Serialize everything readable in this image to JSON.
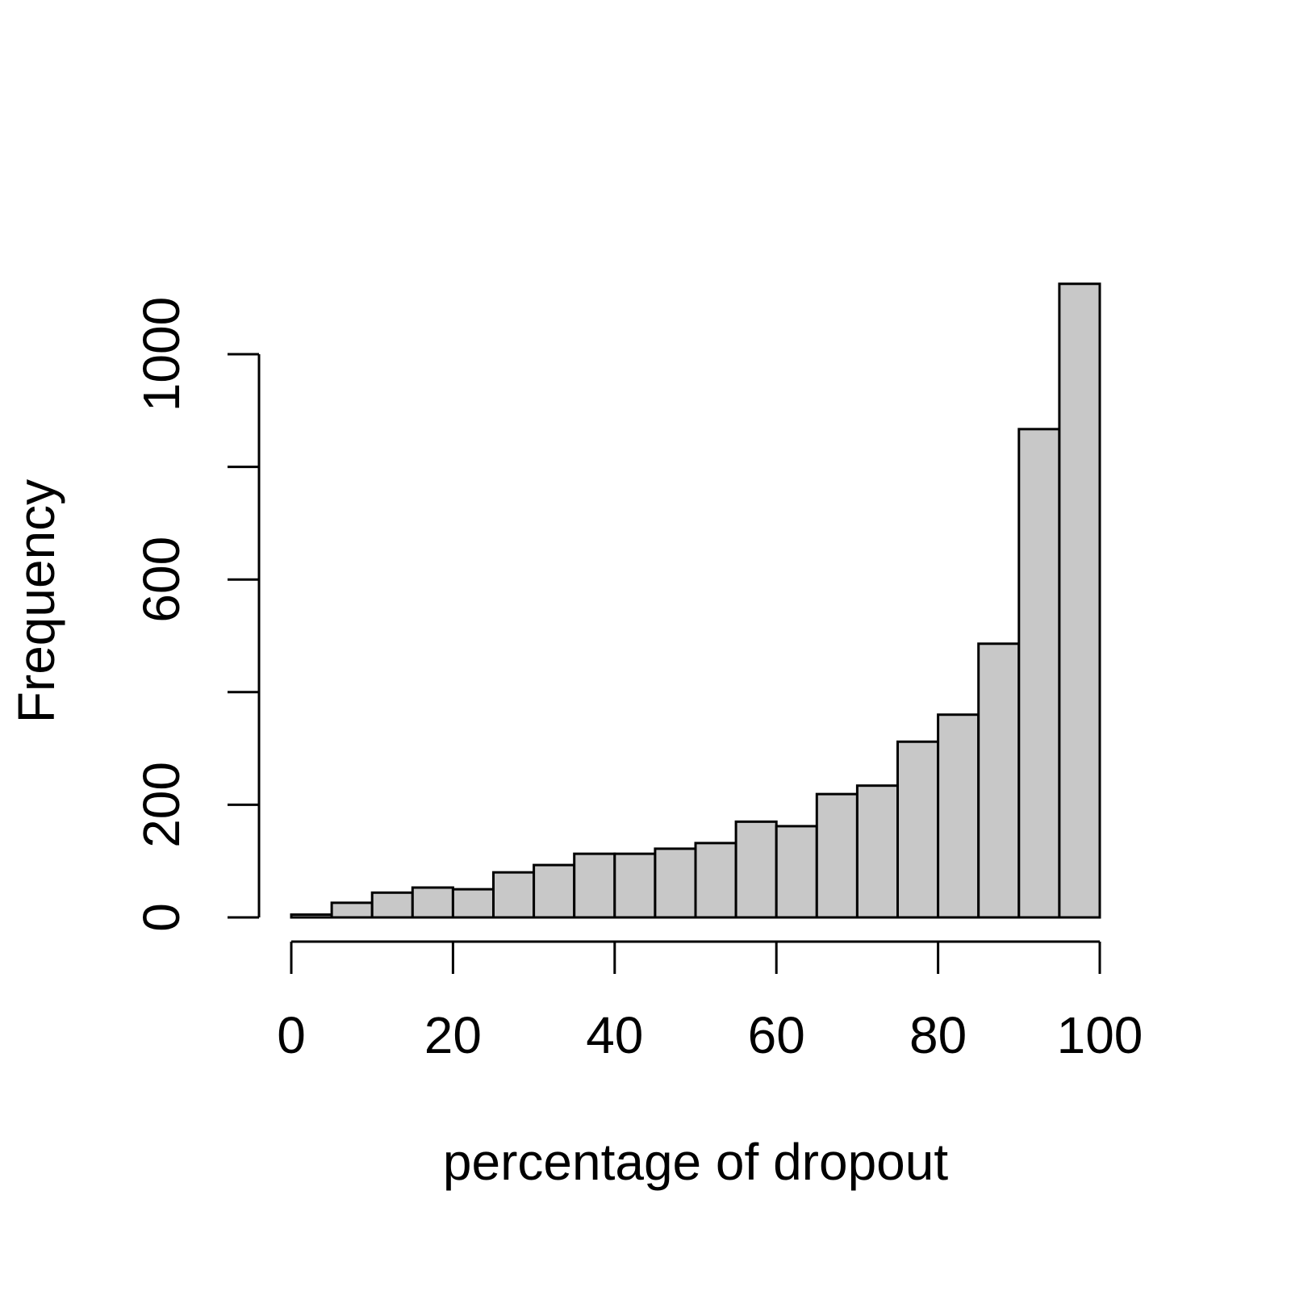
{
  "chart_data": {
    "type": "histogram",
    "x_label": "percentage of dropout",
    "y_label": "Frequency",
    "bins": [
      0,
      5,
      10,
      15,
      20,
      25,
      30,
      35,
      40,
      45,
      50,
      55,
      60,
      65,
      70,
      75,
      80,
      85,
      90,
      95,
      100
    ],
    "values": [
      5,
      26,
      44,
      53,
      50,
      80,
      93,
      113,
      113,
      122,
      132,
      170,
      162,
      219,
      234,
      312,
      360,
      486,
      867,
      1125
    ],
    "color": "#c8c8c8",
    "xlim": [
      0,
      100
    ],
    "xticks": [
      0,
      20,
      40,
      60,
      80,
      100
    ],
    "ylim": [
      0,
      1150
    ],
    "yticks": [
      0,
      200,
      {
        "value": 400,
        "label": null
      },
      600,
      {
        "value": 800,
        "label": null
      },
      1000
    ],
    "grid": false
  }
}
